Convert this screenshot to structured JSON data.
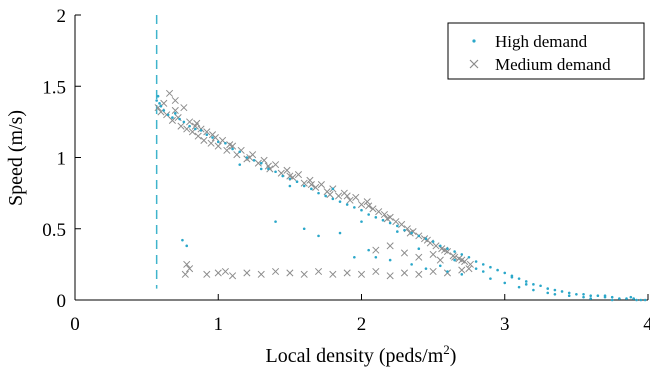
{
  "chart_data": {
    "type": "scatter",
    "xlabel": "Local density (peds/m",
    "xlabel_superscript": "2",
    "xlabel_suffix": ")",
    "ylabel": "Speed (m/s)",
    "xlim": [
      0,
      4
    ],
    "ylim": [
      0,
      2
    ],
    "xticks": [
      "0",
      "1",
      "2",
      "3",
      "4"
    ],
    "yticks": [
      "0",
      "0.5",
      "1",
      "1.5",
      "2"
    ],
    "grid": false,
    "legend_position": "top-right",
    "reference_line": {
      "orientation": "vertical",
      "x": 0.57,
      "style": "dashed",
      "color": "#3fb4cc"
    },
    "series": [
      {
        "name": "High demand",
        "marker": "dot",
        "color": "#2aa7c9",
        "points": [
          [
            0.57,
            1.4
          ],
          [
            0.58,
            1.43
          ],
          [
            0.59,
            1.38
          ],
          [
            0.6,
            1.36
          ],
          [
            0.62,
            1.33
          ],
          [
            0.65,
            1.3
          ],
          [
            0.68,
            1.28
          ],
          [
            0.7,
            1.31
          ],
          [
            0.73,
            1.27
          ],
          [
            0.76,
            1.25
          ],
          [
            0.8,
            1.22
          ],
          [
            0.84,
            1.2
          ],
          [
            0.88,
            1.19
          ],
          [
            0.92,
            1.16
          ],
          [
            0.96,
            1.14
          ],
          [
            1.0,
            1.11
          ],
          [
            1.05,
            1.1
          ],
          [
            1.1,
            1.06
          ],
          [
            1.15,
            1.04
          ],
          [
            1.2,
            1.0
          ],
          [
            1.25,
            0.98
          ],
          [
            1.3,
            0.96
          ],
          [
            1.35,
            0.92
          ],
          [
            1.4,
            0.9
          ],
          [
            1.45,
            0.87
          ],
          [
            1.5,
            0.85
          ],
          [
            1.55,
            0.83
          ],
          [
            1.6,
            0.8
          ],
          [
            1.65,
            0.78
          ],
          [
            1.7,
            0.75
          ],
          [
            1.75,
            0.73
          ],
          [
            1.8,
            0.71
          ],
          [
            1.85,
            0.69
          ],
          [
            1.9,
            0.67
          ],
          [
            1.95,
            0.65
          ],
          [
            2.0,
            0.63
          ],
          [
            2.05,
            0.6
          ],
          [
            2.1,
            0.58
          ],
          [
            2.15,
            0.56
          ],
          [
            2.2,
            0.54
          ],
          [
            2.25,
            0.52
          ],
          [
            2.3,
            0.49
          ],
          [
            2.35,
            0.47
          ],
          [
            2.4,
            0.45
          ],
          [
            2.45,
            0.43
          ],
          [
            2.5,
            0.41
          ],
          [
            2.55,
            0.38
          ],
          [
            2.6,
            0.36
          ],
          [
            2.65,
            0.34
          ],
          [
            2.7,
            0.32
          ],
          [
            2.75,
            0.3
          ],
          [
            2.8,
            0.27
          ],
          [
            2.85,
            0.25
          ],
          [
            2.9,
            0.23
          ],
          [
            2.95,
            0.21
          ],
          [
            3.0,
            0.19
          ],
          [
            3.05,
            0.17
          ],
          [
            3.1,
            0.15
          ],
          [
            3.15,
            0.13
          ],
          [
            3.2,
            0.11
          ],
          [
            3.25,
            0.1
          ],
          [
            3.3,
            0.08
          ],
          [
            3.35,
            0.07
          ],
          [
            3.4,
            0.06
          ],
          [
            3.45,
            0.05
          ],
          [
            3.5,
            0.04
          ],
          [
            3.55,
            0.04
          ],
          [
            3.6,
            0.03
          ],
          [
            3.65,
            0.03
          ],
          [
            3.7,
            0.02
          ],
          [
            3.75,
            0.02
          ],
          [
            3.8,
            0.01
          ],
          [
            3.85,
            0.01
          ],
          [
            3.9,
            0.01
          ],
          [
            3.95,
            0.0
          ],
          [
            3.98,
            0.0
          ],
          [
            0.75,
            0.42
          ],
          [
            0.78,
            0.38
          ],
          [
            1.4,
            0.55
          ],
          [
            1.6,
            0.5
          ],
          [
            1.7,
            0.45
          ],
          [
            1.85,
            0.47
          ],
          [
            1.95,
            0.3
          ],
          [
            2.05,
            0.35
          ],
          [
            2.1,
            0.3
          ],
          [
            2.2,
            0.28
          ],
          [
            2.35,
            0.25
          ],
          [
            2.45,
            0.22
          ],
          [
            2.55,
            0.24
          ],
          [
            2.6,
            0.2
          ],
          [
            2.7,
            0.18
          ],
          [
            2.8,
            0.22
          ],
          [
            2.9,
            0.15
          ],
          [
            3.0,
            0.12
          ],
          [
            3.1,
            0.09
          ],
          [
            3.2,
            0.07
          ],
          [
            3.3,
            0.05
          ],
          [
            3.45,
            0.03
          ],
          [
            3.6,
            0.01
          ],
          [
            3.75,
            0.0
          ],
          [
            1.15,
            0.95
          ],
          [
            1.3,
            0.92
          ],
          [
            1.5,
            0.8
          ],
          [
            1.8,
            0.78
          ],
          [
            2.0,
            0.55
          ],
          [
            2.25,
            0.48
          ],
          [
            2.4,
            0.36
          ],
          [
            2.65,
            0.28
          ],
          [
            2.85,
            0.2
          ],
          [
            3.05,
            0.16
          ],
          [
            3.15,
            0.11
          ],
          [
            3.35,
            0.04
          ],
          [
            3.55,
            0.02
          ],
          [
            3.7,
            0.03
          ],
          [
            3.88,
            0.02
          ],
          [
            3.92,
            0.0
          ]
        ]
      },
      {
        "name": "Medium demand",
        "marker": "cross",
        "color": "#8c8c8c",
        "points": [
          [
            0.58,
            1.35
          ],
          [
            0.6,
            1.32
          ],
          [
            0.62,
            1.38
          ],
          [
            0.64,
            1.3
          ],
          [
            0.66,
            1.45
          ],
          [
            0.68,
            1.26
          ],
          [
            0.7,
            1.4
          ],
          [
            0.72,
            1.28
          ],
          [
            0.74,
            1.22
          ],
          [
            0.76,
            1.35
          ],
          [
            0.78,
            1.2
          ],
          [
            0.8,
            1.25
          ],
          [
            0.82,
            1.18
          ],
          [
            0.84,
            1.22
          ],
          [
            0.86,
            1.15
          ],
          [
            0.88,
            1.2
          ],
          [
            0.9,
            1.12
          ],
          [
            0.92,
            1.18
          ],
          [
            0.95,
            1.1
          ],
          [
            0.98,
            1.14
          ],
          [
            1.0,
            1.08
          ],
          [
            1.03,
            1.12
          ],
          [
            1.06,
            1.05
          ],
          [
            1.1,
            1.08
          ],
          [
            1.13,
            1.02
          ],
          [
            1.16,
            1.05
          ],
          [
            1.2,
            0.99
          ],
          [
            1.24,
            1.02
          ],
          [
            1.28,
            0.96
          ],
          [
            1.32,
            0.98
          ],
          [
            1.36,
            0.92
          ],
          [
            1.4,
            0.95
          ],
          [
            1.44,
            0.89
          ],
          [
            1.48,
            0.91
          ],
          [
            1.52,
            0.86
          ],
          [
            1.56,
            0.88
          ],
          [
            1.6,
            0.82
          ],
          [
            1.64,
            0.84
          ],
          [
            1.68,
            0.79
          ],
          [
            1.72,
            0.81
          ],
          [
            1.76,
            0.76
          ],
          [
            1.8,
            0.78
          ],
          [
            1.84,
            0.73
          ],
          [
            1.88,
            0.75
          ],
          [
            1.92,
            0.7
          ],
          [
            1.96,
            0.72
          ],
          [
            2.0,
            0.67
          ],
          [
            2.04,
            0.69
          ],
          [
            2.08,
            0.64
          ],
          [
            2.12,
            0.62
          ],
          [
            2.16,
            0.6
          ],
          [
            2.2,
            0.58
          ],
          [
            2.24,
            0.55
          ],
          [
            2.28,
            0.53
          ],
          [
            2.32,
            0.5
          ],
          [
            2.36,
            0.48
          ],
          [
            2.4,
            0.45
          ],
          [
            2.44,
            0.43
          ],
          [
            2.48,
            0.4
          ],
          [
            2.52,
            0.38
          ],
          [
            2.56,
            0.36
          ],
          [
            2.6,
            0.34
          ],
          [
            2.64,
            0.31
          ],
          [
            2.68,
            0.29
          ],
          [
            2.72,
            0.27
          ],
          [
            2.76,
            0.25
          ],
          [
            0.77,
            0.18
          ],
          [
            0.78,
            0.25
          ],
          [
            0.8,
            0.22
          ],
          [
            0.92,
            0.18
          ],
          [
            1.0,
            0.19
          ],
          [
            1.05,
            0.2
          ],
          [
            1.1,
            0.17
          ],
          [
            1.2,
            0.19
          ],
          [
            1.3,
            0.18
          ],
          [
            1.4,
            0.2
          ],
          [
            1.5,
            0.19
          ],
          [
            1.6,
            0.18
          ],
          [
            1.7,
            0.2
          ],
          [
            1.8,
            0.18
          ],
          [
            1.9,
            0.19
          ],
          [
            2.0,
            0.18
          ],
          [
            2.1,
            0.2
          ],
          [
            2.2,
            0.17
          ],
          [
            2.3,
            0.19
          ],
          [
            2.4,
            0.18
          ],
          [
            2.5,
            0.2
          ],
          [
            2.6,
            0.19
          ],
          [
            2.7,
            0.21
          ],
          [
            2.1,
            0.35
          ],
          [
            2.2,
            0.38
          ],
          [
            2.3,
            0.33
          ],
          [
            2.4,
            0.3
          ],
          [
            2.5,
            0.32
          ],
          [
            2.55,
            0.28
          ],
          [
            2.65,
            0.3
          ],
          [
            2.75,
            0.22
          ],
          [
            0.7,
            1.33
          ],
          [
            0.85,
            1.24
          ],
          [
            0.96,
            1.16
          ],
          [
            1.08,
            1.09
          ],
          [
            1.22,
            1.0
          ],
          [
            1.35,
            0.94
          ],
          [
            1.5,
            0.87
          ],
          [
            1.65,
            0.81
          ],
          [
            1.78,
            0.74
          ],
          [
            1.9,
            0.73
          ],
          [
            2.05,
            0.66
          ],
          [
            2.18,
            0.57
          ],
          [
            2.34,
            0.47
          ],
          [
            2.46,
            0.42
          ],
          [
            2.58,
            0.35
          ],
          [
            2.7,
            0.28
          ]
        ]
      }
    ]
  }
}
